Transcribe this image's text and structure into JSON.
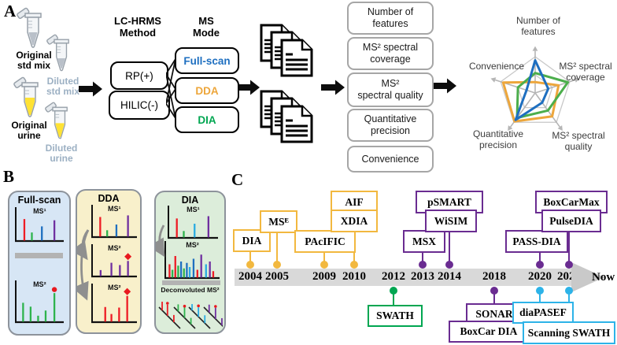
{
  "figure": {
    "panel_a_letter": "A",
    "panel_b_letter": "B",
    "panel_c_letter": "C"
  },
  "panel_a": {
    "samples": [
      {
        "label": "Original\nstd mix",
        "label_color": "#000000",
        "liquid_color": "#b9c0c9"
      },
      {
        "label": "Diluted\nstd mix",
        "label_color": "#9cb0c3",
        "liquid_color": "#b9c0c9"
      },
      {
        "label": "Original\nurine",
        "label_color": "#000000",
        "liquid_color": "#ffe233"
      },
      {
        "label": "Diluted\nurine",
        "label_color": "#9cb0c3",
        "liquid_color": "#ffe233"
      }
    ],
    "lc_header": "LC-HRMS\nMethod",
    "ms_header": "MS\nMode",
    "method_boxes": [
      "RP(+)",
      "HILIC(-)"
    ],
    "mode_boxes": [
      {
        "label": "Full-scan",
        "color": "#1e6fc0"
      },
      {
        "label": "DDA",
        "color": "#eda63b"
      },
      {
        "label": "DIA",
        "color": "#00a651"
      }
    ],
    "criteria": [
      "Number of\nfeatures",
      "MS² spectral\ncoverage",
      "MS²\nspectral quality",
      "Quantitative\nprecision",
      "Convenience"
    ]
  },
  "chart_data": {
    "type": "radar",
    "axes": [
      "Number of features",
      "MS² spectral coverage",
      "MS² spectral quality",
      "Quantitative precision",
      "Convenience"
    ],
    "labels_wrapped": [
      "Number of\nfeatures",
      "MS² spectral\ncoverage",
      "MS² spectral\nquality",
      "Quantitative\nprecision",
      "Convenience"
    ],
    "series": [
      {
        "name": "Full-scan",
        "color": "#1e6fc0",
        "values": [
          0.9,
          0.38,
          0.33,
          0.92,
          0.25
        ]
      },
      {
        "name": "DDA",
        "color": "#eda63b",
        "values": [
          0.3,
          0.68,
          0.8,
          0.97,
          0.93
        ]
      },
      {
        "name": "DIA",
        "color": "#4cae4c",
        "values": [
          0.55,
          0.95,
          0.6,
          0.85,
          0.5
        ]
      }
    ],
    "scale_max": 1,
    "grid_color": "#c8c8c8",
    "legend_position": "none"
  },
  "panel_b": {
    "sections": [
      {
        "title": "Full-scan",
        "bg": "#d7e6f5"
      },
      {
        "title": "DDA",
        "bg": "#f8f0cb"
      },
      {
        "title": "DIA",
        "bg": "#dcedda"
      }
    ],
    "decon_label": "Deconvoluted MS²",
    "spectra": {
      "fs_ms1": {
        "label": "MS¹",
        "peaks": [
          [
            0.15,
            0.9,
            "#ee1c25"
          ],
          [
            0.33,
            0.35,
            "#2eb34d"
          ],
          [
            0.57,
            0.6,
            "#1e6fc0"
          ],
          [
            0.87,
            0.85,
            "#7030a0"
          ]
        ]
      },
      "fs_ms2": {
        "label": "MS²",
        "marker": "dot",
        "peaks": [
          [
            0.12,
            0.6,
            "#2eb34d"
          ],
          [
            0.3,
            0.48,
            "#2eb34d"
          ],
          [
            0.48,
            0.2,
            "#2eb34d"
          ],
          [
            0.66,
            0.36,
            "#2eb34d"
          ],
          [
            0.87,
            0.9,
            "#2eb34d"
          ]
        ]
      },
      "dda_ms1": {
        "label": "MS¹",
        "peaks": [
          [
            0.15,
            0.88,
            "#ee1c25"
          ],
          [
            0.33,
            0.3,
            "#2eb34d"
          ],
          [
            0.57,
            0.55,
            "#1e6fc0"
          ],
          [
            0.87,
            0.95,
            "#7030a0"
          ]
        ]
      },
      "dda_ms2a": {
        "label": "MS²",
        "marker": "diamond",
        "peaks": [
          [
            0.16,
            0.28,
            "#7030a0"
          ],
          [
            0.44,
            0.6,
            "#7030a0"
          ],
          [
            0.66,
            0.5,
            "#7030a0"
          ],
          [
            0.87,
            0.68,
            "#7030a0"
          ]
        ]
      },
      "dda_ms2b": {
        "label": "MS²",
        "marker": "diamond",
        "peaks": [
          [
            0.28,
            0.52,
            "#ee1c25"
          ],
          [
            0.44,
            0.28,
            "#ee1c25"
          ],
          [
            0.64,
            0.5,
            "#ee1c25"
          ],
          [
            0.85,
            0.9,
            "#ee1c25"
          ]
        ]
      },
      "dia_ms1": {
        "label": "MS¹",
        "peaks": [
          [
            0.14,
            0.85,
            "#ee1c25"
          ],
          [
            0.3,
            0.3,
            "#2eb34d"
          ],
          [
            0.55,
            0.62,
            "#29abe2"
          ],
          [
            0.87,
            0.95,
            "#7030a0"
          ]
        ]
      },
      "dia_ms2": {
        "label": "MS²",
        "peaks": [
          [
            0.04,
            0.5,
            "#ee1c25"
          ],
          [
            0.1,
            0.3,
            "#2eb34d"
          ],
          [
            0.16,
            0.8,
            "#ee1c25"
          ],
          [
            0.22,
            0.45,
            "#2eb34d"
          ],
          [
            0.28,
            0.6,
            "#1e6fc0"
          ],
          [
            0.34,
            0.35,
            "#2eb34d"
          ],
          [
            0.4,
            0.55,
            "#1e6fc0"
          ],
          [
            0.46,
            0.4,
            "#29abe2"
          ],
          [
            0.54,
            0.7,
            "#1e6fc0"
          ],
          [
            0.62,
            0.3,
            "#ee1c25"
          ],
          [
            0.7,
            0.85,
            "#7030a0"
          ],
          [
            0.8,
            0.5,
            "#29abe2"
          ],
          [
            0.88,
            0.6,
            "#7030a0"
          ],
          [
            0.95,
            0.25,
            "#ee1c25"
          ]
        ]
      }
    },
    "decon_groups": [
      {
        "color": "#ee1c25",
        "peaks": [
          [
            0.15,
            11
          ],
          [
            0.4,
            14
          ],
          [
            0.7,
            9
          ]
        ],
        "dots": [
          1
        ]
      },
      {
        "color": "#2eb34d",
        "peaks": [
          [
            0.2,
            9
          ],
          [
            0.5,
            13
          ],
          [
            0.8,
            8
          ]
        ],
        "dots": [
          1
        ]
      },
      {
        "color": "#29abe2",
        "peaks": [
          [
            0.15,
            8
          ],
          [
            0.45,
            12
          ],
          [
            0.75,
            10
          ]
        ],
        "dots": [
          1
        ]
      },
      {
        "color": "#7030a0",
        "peaks": [
          [
            0.25,
            10
          ],
          [
            0.55,
            14
          ],
          [
            0.85,
            9
          ]
        ],
        "dots": [
          1
        ]
      }
    ]
  },
  "panel_c": {
    "years": [
      "2004",
      "2005",
      "2009",
      "2010",
      "2012",
      "2013",
      "2014",
      "2018",
      "2020",
      "2021"
    ],
    "now_label": "Now",
    "events": {
      "dia": "DIA",
      "mse": "MSᴱ",
      "pacific": "PAcIFIC",
      "aif": "AIF",
      "xdia": "XDIA",
      "msx": "MSX",
      "psmart": "pSMART",
      "wisim": "WiSIM",
      "swath": "SWATH",
      "sonar": "SONAR",
      "boxcardia": "BoxCar DIA",
      "passdia": "PASS-DIA",
      "diapasef": "diaPASEF",
      "pulsedia": "PulseDIA",
      "boxcarmax": "BoxCarMax",
      "scanningswath": "Scanning SWATH"
    },
    "colors": {
      "first_gen": "#f2b83f",
      "orbitrap": "#6a2c91",
      "swath": "#00a651",
      "tof": "#2db3e8"
    }
  }
}
